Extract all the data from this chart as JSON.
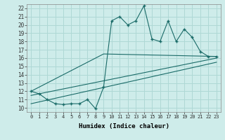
{
  "xlabel": "Humidex (Indice chaleur)",
  "bg_color": "#ceecea",
  "grid_color": "#afd8d5",
  "line_color": "#1a6b68",
  "xlim": [
    -0.5,
    23.5
  ],
  "ylim": [
    9.5,
    22.5
  ],
  "xticks": [
    0,
    1,
    2,
    3,
    4,
    5,
    6,
    7,
    8,
    9,
    10,
    11,
    12,
    13,
    14,
    15,
    16,
    17,
    18,
    19,
    20,
    21,
    22,
    23
  ],
  "yticks": [
    10,
    11,
    12,
    13,
    14,
    15,
    16,
    17,
    18,
    19,
    20,
    21,
    22
  ],
  "main_x": [
    0,
    1,
    2,
    3,
    4,
    5,
    6,
    7,
    8,
    9,
    10,
    11,
    12,
    13,
    14,
    15,
    16,
    17,
    18,
    19,
    20,
    21,
    22,
    23
  ],
  "main_y": [
    12,
    11.7,
    11,
    10.5,
    10.4,
    10.5,
    10.5,
    11,
    9.9,
    12.5,
    20.5,
    21,
    20,
    20.5,
    22.3,
    18.3,
    18,
    20.5,
    18,
    19.5,
    18.5,
    16.8,
    16.2,
    16.2
  ],
  "trend1_x": [
    0,
    9,
    23
  ],
  "trend1_y": [
    12,
    16.5,
    16.2
  ],
  "trend2_x": [
    0,
    23
  ],
  "trend2_y": [
    11.5,
    16.0
  ],
  "trend3_x": [
    0,
    23
  ],
  "trend3_y": [
    10.5,
    15.5
  ]
}
